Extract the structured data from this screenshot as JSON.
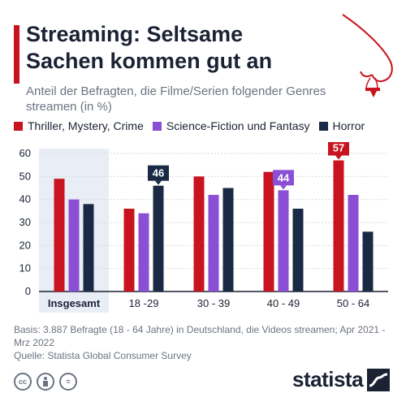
{
  "header": {
    "title": "Streaming: Seltsame Sachen kommen gut an",
    "subtitle": "Anteil der Befragten, die Filme/Serien folgender Genres streamen (in %)"
  },
  "icons": {
    "illustration": "nose-with-nosebleed-icon",
    "cc": "creative-commons-icon",
    "by": "attribution-person-icon",
    "nd": "no-derivatives-equals-icon",
    "logo": "statista-logo-icon"
  },
  "chart_data": {
    "type": "bar",
    "categories": [
      "Insgesamt",
      "18 -29",
      "30 - 39",
      "40 - 49",
      "50 - 64"
    ],
    "series": [
      {
        "name": "Thriller, Mystery, Crime",
        "color": "#c8141e",
        "values": [
          49,
          36,
          50,
          52,
          57
        ]
      },
      {
        "name": "Science-Fiction und Fantasy",
        "color": "#8b4fd6",
        "values": [
          40,
          34,
          42,
          44,
          42
        ]
      },
      {
        "name": "Horror",
        "color": "#1a2a44",
        "values": [
          38,
          46,
          45,
          36,
          26
        ]
      }
    ],
    "data_labels": [
      {
        "category": "18 -29",
        "series": "Horror",
        "text": "46"
      },
      {
        "category": "40 - 49",
        "series": "Science-Fiction und Fantasy",
        "text": "44"
      },
      {
        "category": "50 - 64",
        "series": "Thriller, Mystery, Crime",
        "text": "57"
      }
    ],
    "yticks": [
      "0",
      "10",
      "20",
      "30",
      "40",
      "50",
      "60"
    ],
    "ylim": [
      0,
      60
    ],
    "highlight_category": "Insgesamt",
    "grid": true,
    "legend_position": "top"
  },
  "footer": {
    "basis": "Basis: 3.887 Befragte (18 - 64 Jahre) in Deutschland, die Videos streamen; Apr 2021 - Mrz 2022",
    "source": "Quelle: Statista Global Consumer Survey"
  },
  "brand": {
    "name": "statista",
    "cc_label": "cc",
    "nd_label": "="
  },
  "colors": {
    "accent": "#c8141e",
    "purple": "#8b4fd6",
    "navy": "#1a2a44",
    "highlight_bg": "#e9edf5"
  }
}
